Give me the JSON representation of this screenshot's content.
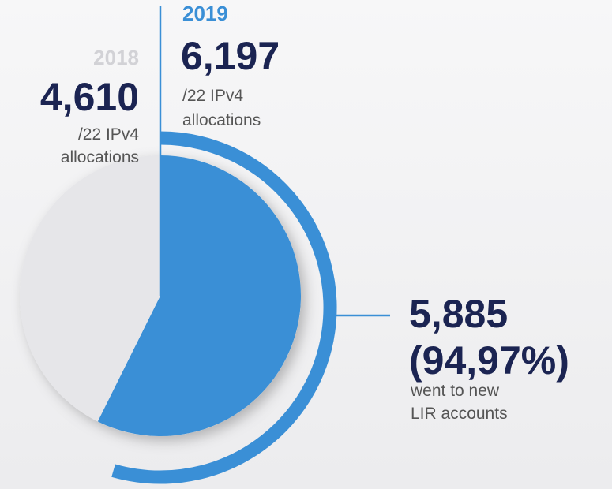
{
  "chart_data": {
    "type": "pie",
    "categories": [
      "2018",
      "2019"
    ],
    "values": [
      4610,
      6197
    ],
    "value_labels": [
      "4,610",
      "6,197"
    ],
    "colors": [
      "#e6e6e9",
      "#3a8fd6"
    ],
    "year_colors": [
      "#d2d2d6",
      "#3a8fd6"
    ],
    "captions": [
      [
        "/22 IPv4",
        "allocations"
      ],
      [
        "/22 IPv4",
        "allocations"
      ]
    ],
    "annotation": {
      "value": 5885,
      "value_label": "5,885",
      "percent": 94.97,
      "percent_label": "(94,97%)",
      "text": [
        "went to new",
        "LIR accounts"
      ],
      "color": "#3a8fd6"
    }
  }
}
